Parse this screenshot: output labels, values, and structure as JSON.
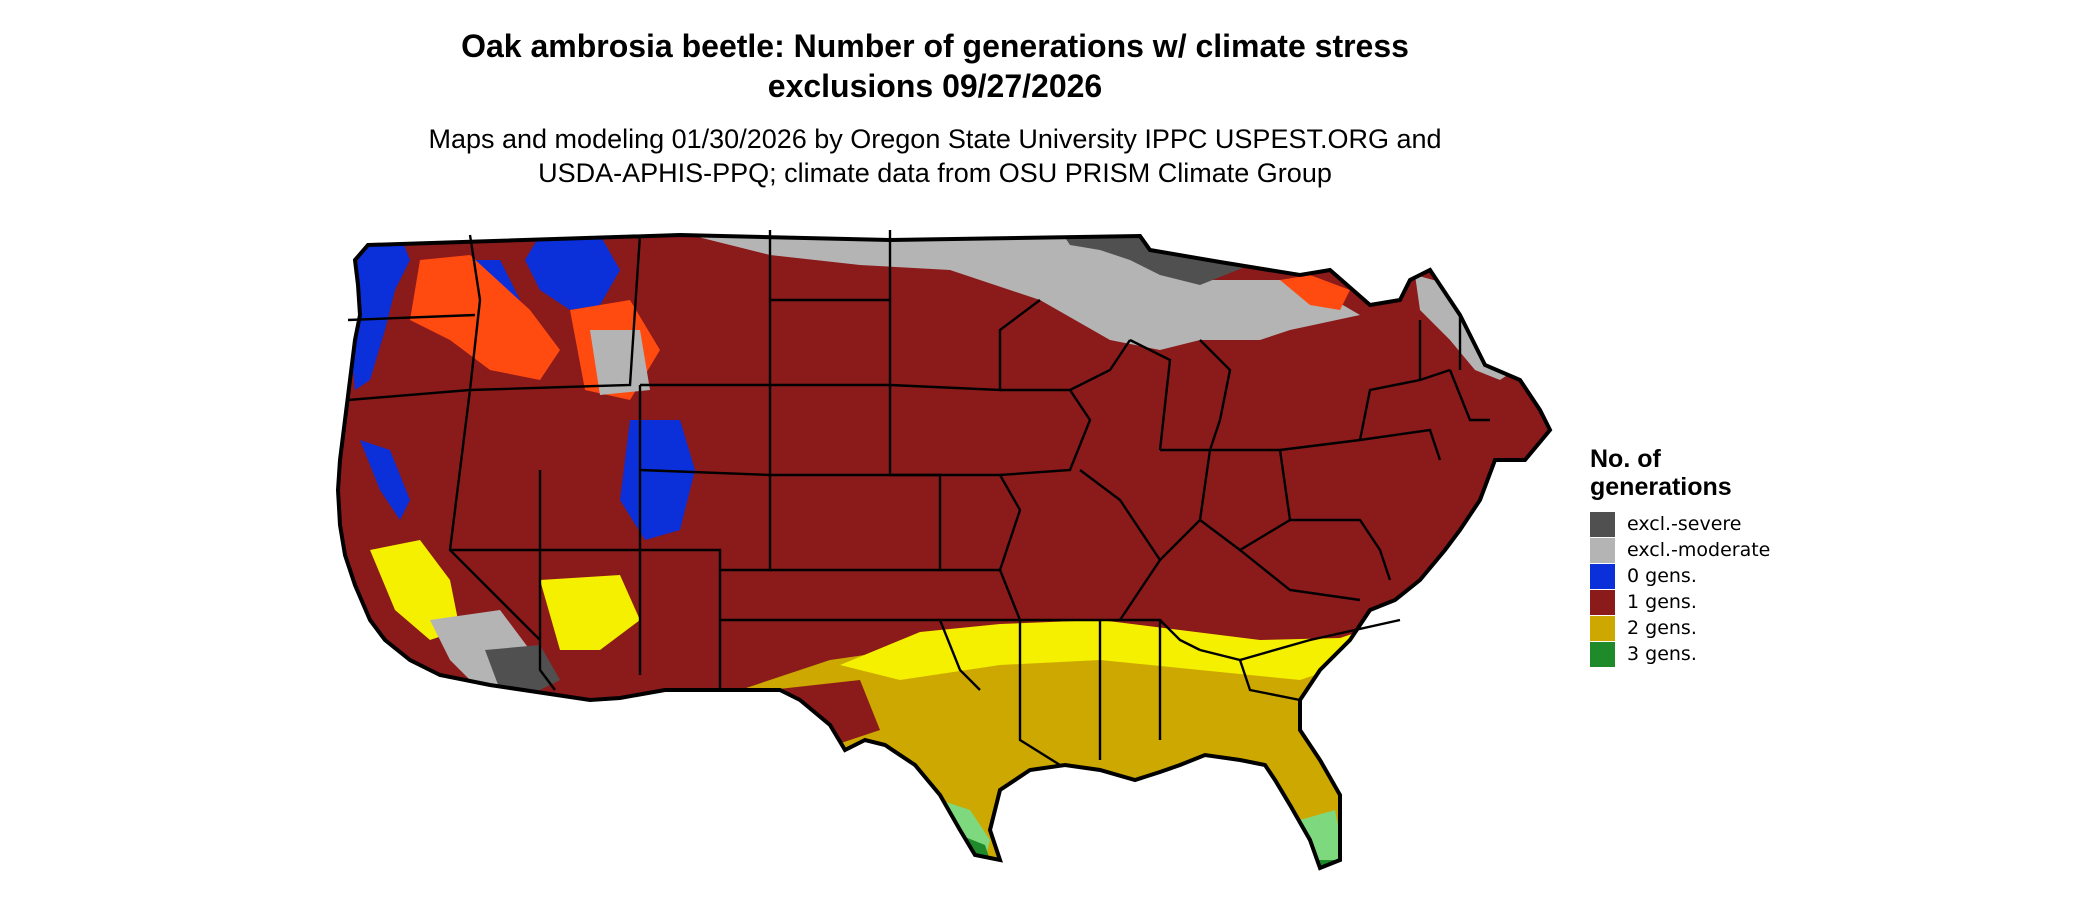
{
  "title_line1": "Oak ambrosia beetle: Number of generations w/ climate stress",
  "title_line2": "exclusions 09/27/2026",
  "subtitle_line1": "Maps and modeling 01/30/2026 by Oregon State University IPPC USPEST.ORG and",
  "subtitle_line2": "USDA-APHIS-PPQ; climate data from OSU PRISM Climate Group",
  "legend": {
    "title": "No. of generations",
    "items": [
      {
        "label": "excl.-severe",
        "color": "#505050"
      },
      {
        "label": "excl.-moderate",
        "color": "#b4b4b4"
      },
      {
        "label": "0 gens.",
        "color": "#0b2fd8"
      },
      {
        "label": "1 gens.",
        "color": "#8b1a1a"
      },
      {
        "label": "2 gens.",
        "color": "#cca800"
      },
      {
        "label": "3 gens.",
        "color": "#1e8a2a"
      }
    ]
  },
  "map_colors": {
    "excl_severe": "#505050",
    "excl_moderate": "#b4b4b4",
    "gens_0": "#0b2fd8",
    "gens_1": "#8b1a1a",
    "gens_2": "#cca800",
    "gens_3": "#1e8a2a",
    "gens_1_high": "#ff4a10",
    "gens_2_high": "#f4f000",
    "gens_3_light": "#7ed87e"
  }
}
